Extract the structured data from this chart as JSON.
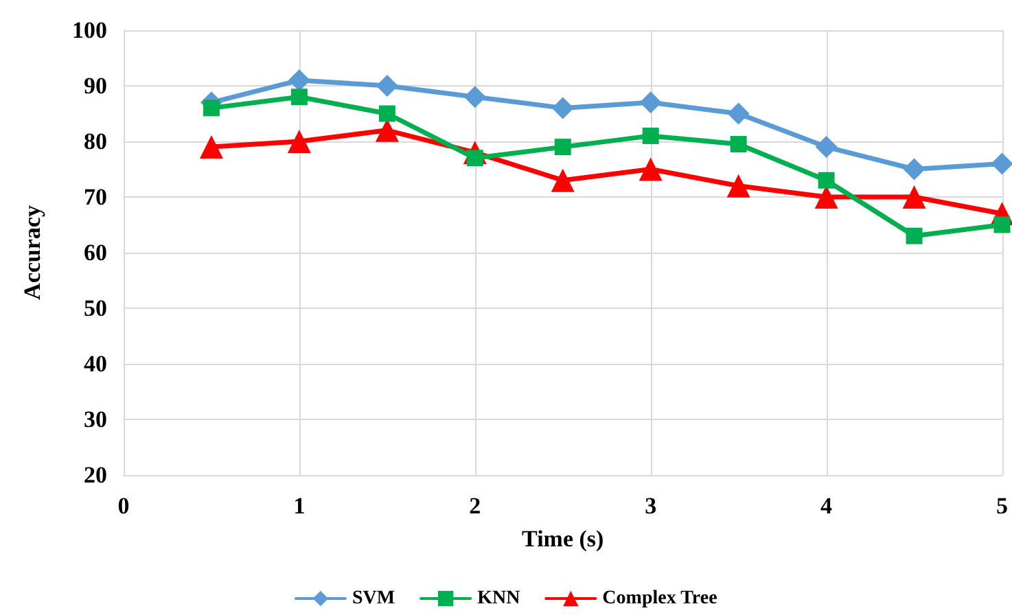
{
  "chart_data": {
    "type": "line",
    "xlabel": "Time (s)",
    "ylabel": "Accuracy",
    "x": [
      0.5,
      1,
      1.5,
      2,
      2.5,
      3,
      3.5,
      4,
      4.5,
      5
    ],
    "series": [
      {
        "name": "SVM",
        "color": "#5b9bd5",
        "marker": "diamond",
        "values": [
          87,
          91,
          90,
          88,
          86,
          87,
          85,
          79,
          75,
          76
        ]
      },
      {
        "name": "KNN",
        "color": "#00b050",
        "marker": "square",
        "values": [
          86,
          88,
          85,
          77,
          79,
          81,
          79.5,
          73,
          63,
          65
        ]
      },
      {
        "name": "Complex Tree",
        "color": "#ff0000",
        "marker": "triangle",
        "values": [
          79,
          80,
          82,
          78,
          73,
          75,
          72,
          70,
          70,
          67
        ]
      }
    ],
    "xlim": [
      0,
      5
    ],
    "xticks": [
      0,
      1,
      2,
      3,
      4,
      5
    ],
    "ylim": [
      20,
      100
    ],
    "yticks": [
      20,
      30,
      40,
      50,
      60,
      70,
      80,
      90,
      100
    ],
    "grid": true,
    "legend": "bottom"
  }
}
